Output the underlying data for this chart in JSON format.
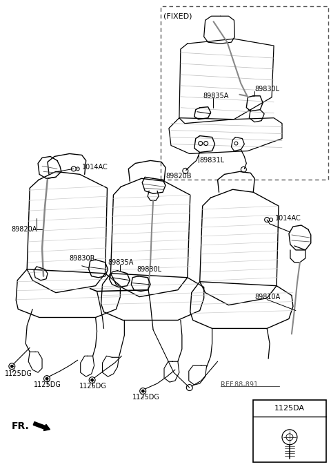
{
  "bg_color": "#ffffff",
  "line_color": "#000000",
  "fig_width": 4.8,
  "fig_height": 6.76,
  "dpi": 100,
  "labels": {
    "fixed_box": "(FIXED)",
    "89835A_top": "89835A",
    "89830L_top": "89830L",
    "89831L": "89831L",
    "1014AC_topleft": "1014AC",
    "89820A": "89820A",
    "89820B": "89820B",
    "89830R": "89830R",
    "89835A_main": "89835A",
    "89830L_main": "89830L",
    "89810A": "89810A",
    "1014AC_right": "1014AC",
    "1125DG_1": "1125DG",
    "1125DG_2": "1125DG",
    "1125DG_3": "1125DG",
    "1125DG_4": "1125DG",
    "REF_88_891": "REF.88-891",
    "FR": "FR.",
    "1125DA": "1125DA"
  },
  "ref_color": "#555555"
}
